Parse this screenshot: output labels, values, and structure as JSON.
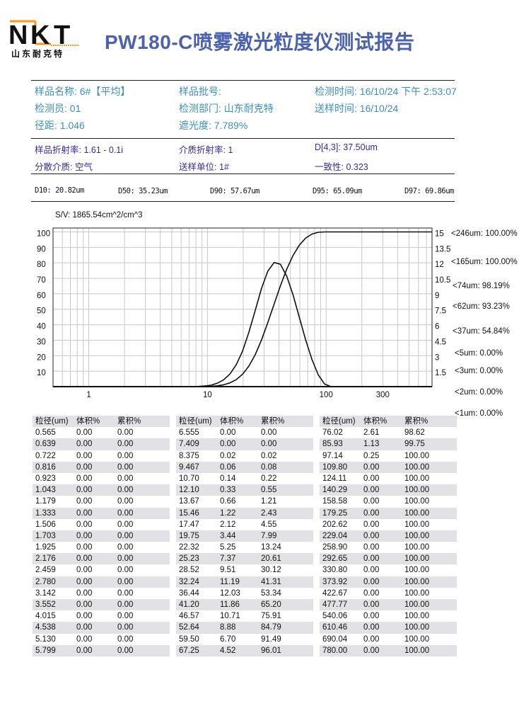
{
  "logo": {
    "letters": "NKT",
    "company": "山东耐克特",
    "colors": {
      "black": "#111111",
      "orange": "#f29a1c"
    }
  },
  "title": "PW180-C喷雾激光粒度仪测试报告",
  "info": {
    "sample_name": "样品名称: 6#【平均】",
    "batch": "样品批号:",
    "test_time": "检测时间: 16/10/24 下午 2:53:07",
    "tester": "检测员: 01",
    "department": "检测部门: 山东耐克特",
    "send_time": "送样时间: 16/10/24",
    "distance": "径距: 1.046",
    "obscuration": "遮光度: 7.789%"
  },
  "params": {
    "sample_ri": "样品折射率: 1.61 - 0.1i",
    "medium_ri": "介质折射率: 1",
    "d43": "D[4,3]: 37.50um",
    "dispersant": "分散介质: 空气",
    "sender": "送样单位: 1#",
    "uniformity": "一致性: 0.323"
  },
  "d_values": [
    "D10: 20.82um",
    "D50: 35.23um",
    "D90: 57.67um",
    "D95: 65.09um",
    "D97: 69.86um"
  ],
  "sv": "S/V: 1865.54cm^2/cm^3",
  "chart_data": {
    "type": "line",
    "x_scale": "log",
    "xlim": [
      0.5,
      780
    ],
    "x_ticks": [
      "1",
      "10",
      "100",
      "300"
    ],
    "y_left_ticks": [
      "10",
      "20",
      "30",
      "40",
      "50",
      "60",
      "70",
      "80",
      "90",
      "100"
    ],
    "y_right_ticks": [
      "1.5",
      "3",
      "4.5",
      "6",
      "7.5",
      "9",
      "10.5",
      "12",
      "13.5",
      "15"
    ],
    "grid": true,
    "series": [
      {
        "axis": "left",
        "kind": "cumulative",
        "source": "cum"
      },
      {
        "axis": "right",
        "kind": "volume",
        "source": "vol"
      }
    ],
    "annotations": [
      "<246um: 100.00%",
      "<165um: 100.00%",
      "<74um: 98.19%",
      "<62um: 93.23%",
      "<37um: 54.84%",
      "<5um: 0.00%",
      "<3um: 0.00%",
      "<2um: 0.00%",
      "<1um: 0.00%"
    ]
  },
  "table": {
    "headers": [
      "粒径(um)",
      "体积%",
      "累积%"
    ],
    "rows": [
      [
        "0.565",
        "0.00",
        "0.00"
      ],
      [
        "0.639",
        "0.00",
        "0.00"
      ],
      [
        "0.722",
        "0.00",
        "0.00"
      ],
      [
        "0.816",
        "0.00",
        "0.00"
      ],
      [
        "0.923",
        "0.00",
        "0.00"
      ],
      [
        "1.043",
        "0.00",
        "0.00"
      ],
      [
        "1.179",
        "0.00",
        "0.00"
      ],
      [
        "1.333",
        "0.00",
        "0.00"
      ],
      [
        "1.506",
        "0.00",
        "0.00"
      ],
      [
        "1.703",
        "0.00",
        "0.00"
      ],
      [
        "1.925",
        "0.00",
        "0.00"
      ],
      [
        "2.176",
        "0.00",
        "0.00"
      ],
      [
        "2.459",
        "0.00",
        "0.00"
      ],
      [
        "2.780",
        "0.00",
        "0.00"
      ],
      [
        "3.142",
        "0.00",
        "0.00"
      ],
      [
        "3.552",
        "0.00",
        "0.00"
      ],
      [
        "4.015",
        "0.00",
        "0.00"
      ],
      [
        "4.538",
        "0.00",
        "0.00"
      ],
      [
        "5.130",
        "0.00",
        "0.00"
      ],
      [
        "5.799",
        "0.00",
        "0.00"
      ],
      [
        "6.555",
        "0.00",
        "0.00"
      ],
      [
        "7.409",
        "0.00",
        "0.00"
      ],
      [
        "8.375",
        "0.02",
        "0.02"
      ],
      [
        "9.467",
        "0.06",
        "0.08"
      ],
      [
        "10.70",
        "0.14",
        "0.22"
      ],
      [
        "12.10",
        "0.33",
        "0.55"
      ],
      [
        "13.67",
        "0.66",
        "1.21"
      ],
      [
        "15.46",
        "1.22",
        "2.43"
      ],
      [
        "17.47",
        "2.12",
        "4.55"
      ],
      [
        "19.75",
        "3.44",
        "7.99"
      ],
      [
        "22.32",
        "5.25",
        "13.24"
      ],
      [
        "25.23",
        "7.37",
        "20.61"
      ],
      [
        "28.52",
        "9.51",
        "30.12"
      ],
      [
        "32.24",
        "11.19",
        "41.31"
      ],
      [
        "36.44",
        "12.03",
        "53.34"
      ],
      [
        "41.20",
        "11.86",
        "65.20"
      ],
      [
        "46.57",
        "10.71",
        "75.91"
      ],
      [
        "52.64",
        "8.88",
        "84.79"
      ],
      [
        "59.50",
        "6.70",
        "91.49"
      ],
      [
        "67.25",
        "4.52",
        "96.01"
      ],
      [
        "76.02",
        "2.61",
        "98.62"
      ],
      [
        "85.93",
        "1.13",
        "99.75"
      ],
      [
        "97.14",
        "0.25",
        "100.00"
      ],
      [
        "109.80",
        "0.00",
        "100.00"
      ],
      [
        "124.11",
        "0.00",
        "100.00"
      ],
      [
        "140.29",
        "0.00",
        "100.00"
      ],
      [
        "158.58",
        "0.00",
        "100.00"
      ],
      [
        "179.25",
        "0.00",
        "100.00"
      ],
      [
        "202.62",
        "0.00",
        "100.00"
      ],
      [
        "229.04",
        "0.00",
        "100.00"
      ],
      [
        "258.90",
        "0.00",
        "100.00"
      ],
      [
        "292.65",
        "0.00",
        "100.00"
      ],
      [
        "330.80",
        "0.00",
        "100.00"
      ],
      [
        "373.92",
        "0.00",
        "100.00"
      ],
      [
        "422.67",
        "0.00",
        "100.00"
      ],
      [
        "477.77",
        "0.00",
        "100.00"
      ],
      [
        "540.06",
        "0.00",
        "100.00"
      ],
      [
        "610.46",
        "0.00",
        "100.00"
      ],
      [
        "690.04",
        "0.00",
        "100.00"
      ],
      [
        "780.00",
        "0.00",
        "100.00"
      ]
    ]
  }
}
